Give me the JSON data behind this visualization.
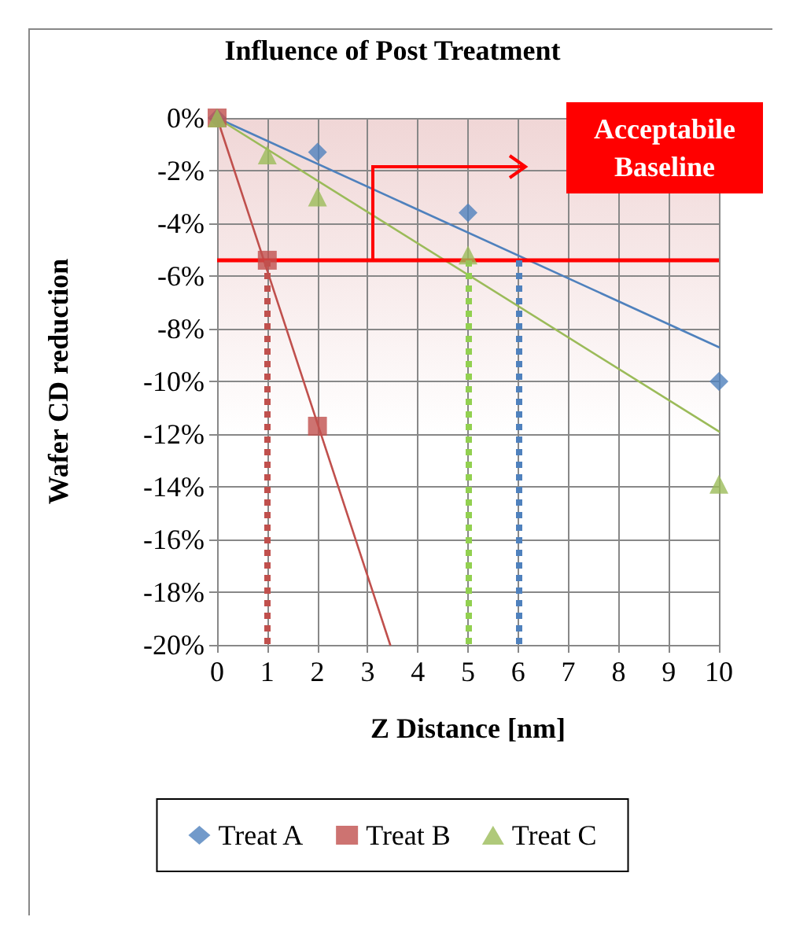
{
  "chart_data": {
    "type": "scatter",
    "title": "Influence of Post Treatment",
    "xlabel": "Z Distance [nm]",
    "ylabel": "Wafer CD reduction",
    "xlim": [
      0,
      10
    ],
    "xticks": [
      0,
      1,
      2,
      3,
      4,
      5,
      6,
      7,
      8,
      9,
      10
    ],
    "ylim": [
      -20,
      0
    ],
    "yticks": [
      {
        "value": 0,
        "label": "0%"
      },
      {
        "value": -2,
        "label": "-2%"
      },
      {
        "value": -4,
        "label": "-4%"
      },
      {
        "value": -6,
        "label": "-6%"
      },
      {
        "value": -8,
        "label": "-8%"
      },
      {
        "value": -10,
        "label": "-10%"
      },
      {
        "value": -12,
        "label": "-12%"
      },
      {
        "value": -14,
        "label": "-14%"
      },
      {
        "value": -16,
        "label": "-16%"
      },
      {
        "value": -18,
        "label": "-18%"
      },
      {
        "value": -20,
        "label": "-20%"
      }
    ],
    "grid": true,
    "legend": "bottom",
    "series": [
      {
        "name": "Treat A",
        "color": "#4f81bd",
        "marker": "diamond",
        "x": [
          0,
          2,
          5,
          10
        ],
        "values": [
          0,
          -1.3,
          -3.6,
          -10.0
        ]
      },
      {
        "name": "Treat B",
        "color": "#c0504d",
        "marker": "square",
        "x": [
          0,
          1,
          2
        ],
        "values": [
          0,
          -5.4,
          -11.7
        ]
      },
      {
        "name": "Treat C",
        "color": "#9bbb59",
        "marker": "triangle",
        "x": [
          0,
          1,
          2,
          5,
          10
        ],
        "values": [
          0,
          -1.4,
          -3.0,
          -5.2,
          -13.9
        ]
      },
      {
        "type": "line",
        "color": "#4f81bd",
        "marker": "none",
        "x": [
          0,
          10
        ],
        "values": [
          0,
          -8.7
        ]
      },
      {
        "type": "line",
        "color": "#c0504d",
        "marker": "none",
        "x": [
          0,
          3.45
        ],
        "values": [
          0,
          -20
        ]
      },
      {
        "type": "line",
        "color": "#9bbb59",
        "marker": "none",
        "x": [
          0,
          10
        ],
        "values": [
          0,
          -11.9
        ]
      }
    ],
    "ref_lines": [
      {
        "axis": "y",
        "value": -5.4,
        "color": "#ff0000",
        "line_style": "solid"
      },
      {
        "axis": "x",
        "value": 1,
        "color": "#c0504d",
        "line_style": "dotted"
      },
      {
        "axis": "x",
        "value": 5,
        "color": "#92d050",
        "line_style": "dotted"
      },
      {
        "axis": "x",
        "value": 6,
        "color": "#4f81bd",
        "line_style": "dotted"
      }
    ],
    "annotations": [
      "Acceptabile\nBaseline"
    ]
  }
}
